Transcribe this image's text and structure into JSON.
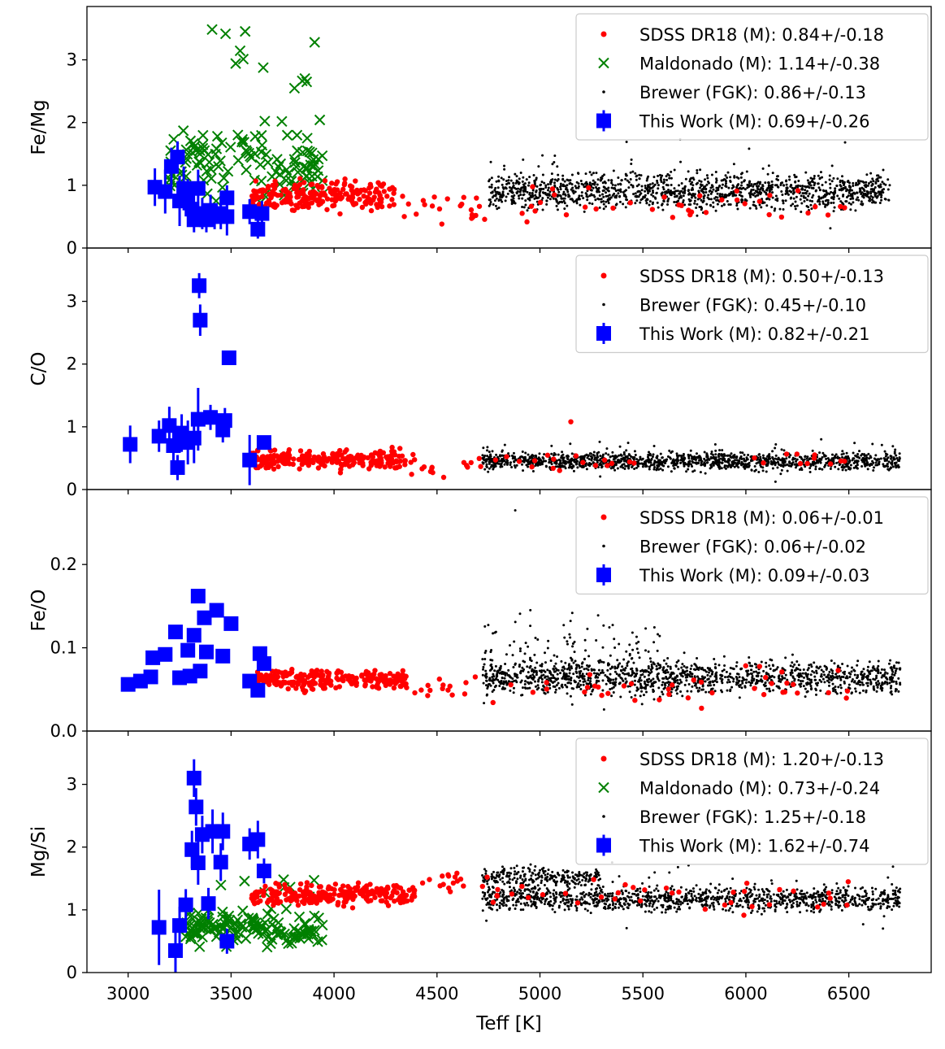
{
  "chart_data": {
    "type": "scatter",
    "xlabel": "Teff [K]",
    "xlim": [
      2800,
      6900
    ],
    "x_ticks": [
      3000,
      3500,
      4000,
      4500,
      5000,
      5500,
      6000,
      6500
    ],
    "colors": {
      "sdss": "#ff0000",
      "maldonado": "#008000",
      "brewer": "#000000",
      "this_work": "#0000ff"
    },
    "panels": [
      {
        "id": "fe-mg",
        "ylabel": "Fe/Mg",
        "ylim": [
          0,
          3.85
        ],
        "y_ticks": [
          0,
          1,
          2,
          3
        ],
        "legend": [
          {
            "key": "sdss",
            "label": "SDSS DR18 (M): 0.84+/-0.18"
          },
          {
            "key": "maldonado",
            "label": "Maldonado (M): 1.14+/-0.38"
          },
          {
            "key": "brewer",
            "label": "Brewer (FGK): 0.86+/-0.13"
          },
          {
            "key": "this_work",
            "label": "This Work (M): 0.69+/-0.26"
          }
        ],
        "dist": {
          "sdss": [
            {
              "x": [
                3600,
                4300
              ],
              "y": [
                0.5,
                1.2
              ],
              "n": 220
            },
            {
              "x": [
                4300,
                4700
              ],
              "y": [
                0.3,
                1.0
              ],
              "n": 20
            },
            {
              "x": [
                4700,
                6500
              ],
              "y": [
                0.3,
                1.1
              ],
              "n": 40
            }
          ],
          "maldonado": [
            {
              "x": [
                3200,
                3950
              ],
              "y": [
                0.5,
                2.2
              ],
              "n": 130
            },
            {
              "x": [
                3300,
                3950
              ],
              "y": [
                2.0,
                3.7
              ],
              "n": 12
            }
          ],
          "brewer": [
            {
              "x": [
                4750,
                6700
              ],
              "y": [
                0.5,
                1.3
              ],
              "n": 1300
            },
            {
              "x": [
                4750,
                6700
              ],
              "y": [
                0.2,
                1.9
              ],
              "n": 100
            }
          ]
        },
        "this_work": [
          {
            "x": 3130,
            "y": 0.97,
            "err": 0.3
          },
          {
            "x": 3180,
            "y": 0.9,
            "err": 0.35
          },
          {
            "x": 3210,
            "y": 1.3,
            "err": 0.3
          },
          {
            "x": 3240,
            "y": 1.45,
            "err": 0.25
          },
          {
            "x": 3250,
            "y": 0.75,
            "err": 0.4
          },
          {
            "x": 3270,
            "y": 0.95,
            "err": 0.35
          },
          {
            "x": 3290,
            "y": 0.8,
            "err": 0.3
          },
          {
            "x": 3310,
            "y": 0.62,
            "err": 0.25
          },
          {
            "x": 3320,
            "y": 0.45,
            "err": 0.2
          },
          {
            "x": 3340,
            "y": 0.95,
            "err": 0.3
          },
          {
            "x": 3360,
            "y": 0.55,
            "err": 0.25
          },
          {
            "x": 3380,
            "y": 0.45,
            "err": 0.2
          },
          {
            "x": 3400,
            "y": 0.6,
            "err": 0.25
          },
          {
            "x": 3420,
            "y": 0.5,
            "err": 0.2
          },
          {
            "x": 3450,
            "y": 0.55,
            "err": 0.25
          },
          {
            "x": 3480,
            "y": 0.8,
            "err": 0.2
          },
          {
            "x": 3590,
            "y": 0.58,
            "err": 0.2
          },
          {
            "x": 3630,
            "y": 0.3,
            "err": 0.15
          },
          {
            "x": 3650,
            "y": 0.55,
            "err": 0.2
          },
          {
            "x": 3480,
            "y": 0.5,
            "err": 0.3
          }
        ]
      },
      {
        "id": "c-o",
        "ylabel": "C/O",
        "ylim": [
          0,
          3.85
        ],
        "y_ticks": [
          0,
          1,
          2,
          3
        ],
        "legend": [
          {
            "key": "sdss",
            "label": "SDSS DR18 (M): 0.50+/-0.13"
          },
          {
            "key": "brewer",
            "label": "Brewer (FGK): 0.45+/-0.10"
          },
          {
            "key": "this_work",
            "label": "This Work (M): 0.82+/-0.21"
          }
        ],
        "dist": {
          "sdss": [
            {
              "x": [
                3600,
                4350
              ],
              "y": [
                0.25,
                0.7
              ],
              "n": 240
            },
            {
              "x": [
                4350,
                4700
              ],
              "y": [
                0.1,
                0.6
              ],
              "n": 15
            },
            {
              "x": [
                4700,
                6500
              ],
              "y": [
                0.25,
                0.6
              ],
              "n": 30
            }
          ],
          "brewer": [
            {
              "x": [
                4720,
                6750
              ],
              "y": [
                0.25,
                0.65
              ],
              "n": 1300
            },
            {
              "x": [
                4720,
                6750
              ],
              "y": [
                0.1,
                0.9
              ],
              "n": 100
            }
          ]
        },
        "points_extra": [
          {
            "key": "sdss",
            "x": 5150,
            "y": 1.08
          }
        ],
        "this_work": [
          {
            "x": 3010,
            "y": 0.72,
            "err": 0.3
          },
          {
            "x": 3150,
            "y": 0.85,
            "err": 0.25
          },
          {
            "x": 3200,
            "y": 1.02,
            "err": 0.3
          },
          {
            "x": 3220,
            "y": 0.7,
            "err": 0.35
          },
          {
            "x": 3240,
            "y": 0.35,
            "err": 0.2
          },
          {
            "x": 3260,
            "y": 0.9,
            "err": 0.3
          },
          {
            "x": 3290,
            "y": 0.75,
            "err": 0.35
          },
          {
            "x": 3320,
            "y": 0.82,
            "err": 0.4
          },
          {
            "x": 3340,
            "y": 1.12,
            "err": 0.5
          },
          {
            "x": 3345,
            "y": 3.25,
            "err": 0.2
          },
          {
            "x": 3350,
            "y": 2.7,
            "err": 0.25
          },
          {
            "x": 3400,
            "y": 1.15,
            "err": 0.2
          },
          {
            "x": 3460,
            "y": 0.95,
            "err": 0.2
          },
          {
            "x": 3470,
            "y": 1.1,
            "err": 0.2
          },
          {
            "x": 3490,
            "y": 2.1,
            "err": 0.1
          },
          {
            "x": 3590,
            "y": 0.47,
            "err": 0.4
          },
          {
            "x": 3660,
            "y": 0.75,
            "err": 0.1
          }
        ]
      },
      {
        "id": "fe-o",
        "ylabel": "Fe/O",
        "ylim": [
          0,
          0.29
        ],
        "y_ticks": [
          0.0,
          0.1,
          0.2
        ],
        "y_tick_labels": [
          "0.0",
          "0.1",
          "0.2"
        ],
        "legend": [
          {
            "key": "sdss",
            "label": "SDSS DR18 (M): 0.06+/-0.01"
          },
          {
            "key": "brewer",
            "label": "Brewer (FGK): 0.06+/-0.02"
          },
          {
            "key": "this_work",
            "label": "This Work (M): 0.09+/-0.03"
          }
        ],
        "dist": {
          "sdss": [
            {
              "x": [
                3600,
                4350
              ],
              "y": [
                0.045,
                0.08
              ],
              "n": 240
            },
            {
              "x": [
                4350,
                4700
              ],
              "y": [
                0.03,
                0.07
              ],
              "n": 15
            },
            {
              "x": [
                4700,
                6500
              ],
              "y": [
                0.02,
                0.085
              ],
              "n": 40
            }
          ],
          "brewer": [
            {
              "x": [
                4720,
                6750
              ],
              "y": [
                0.035,
                0.095
              ],
              "n": 1300
            },
            {
              "x": [
                4720,
                5600
              ],
              "y": [
                0.01,
                0.16
              ],
              "n": 150
            }
          ]
        },
        "points_extra": [
          {
            "key": "brewer",
            "x": 4880,
            "y": 0.265
          }
        ],
        "this_work": [
          {
            "x": 3000,
            "y": 0.056,
            "err": 0.003
          },
          {
            "x": 3060,
            "y": 0.06,
            "err": 0.003
          },
          {
            "x": 3110,
            "y": 0.065,
            "err": 0.003
          },
          {
            "x": 3120,
            "y": 0.088,
            "err": 0.003
          },
          {
            "x": 3180,
            "y": 0.092,
            "err": 0.003
          },
          {
            "x": 3230,
            "y": 0.119,
            "err": 0.003
          },
          {
            "x": 3250,
            "y": 0.064,
            "err": 0.003
          },
          {
            "x": 3290,
            "y": 0.097,
            "err": 0.003
          },
          {
            "x": 3300,
            "y": 0.066,
            "err": 0.003
          },
          {
            "x": 3320,
            "y": 0.115,
            "err": 0.003
          },
          {
            "x": 3340,
            "y": 0.162,
            "err": 0.003
          },
          {
            "x": 3350,
            "y": 0.072,
            "err": 0.003
          },
          {
            "x": 3370,
            "y": 0.136,
            "err": 0.003
          },
          {
            "x": 3380,
            "y": 0.095,
            "err": 0.003
          },
          {
            "x": 3430,
            "y": 0.145,
            "err": 0.003
          },
          {
            "x": 3460,
            "y": 0.09,
            "err": 0.003
          },
          {
            "x": 3500,
            "y": 0.129,
            "err": 0.003
          },
          {
            "x": 3590,
            "y": 0.06,
            "err": 0.003
          },
          {
            "x": 3630,
            "y": 0.049,
            "err": 0.003
          },
          {
            "x": 3640,
            "y": 0.093,
            "err": 0.003
          },
          {
            "x": 3660,
            "y": 0.081,
            "err": 0.003
          }
        ]
      },
      {
        "id": "mg-si",
        "ylabel": "Mg/Si",
        "ylim": [
          0,
          3.85
        ],
        "y_ticks": [
          0,
          1,
          2,
          3
        ],
        "legend": [
          {
            "key": "sdss",
            "label": "SDSS DR18 (M): 1.20+/-0.13"
          },
          {
            "key": "maldonado",
            "label": "Maldonado (M): 0.73+/-0.24"
          },
          {
            "key": "brewer",
            "label": "Brewer (FGK): 1.25+/-0.18"
          },
          {
            "key": "this_work",
            "label": "This Work (M): 1.62+/-0.74"
          }
        ],
        "dist": {
          "sdss": [
            {
              "x": [
                3600,
                4400
              ],
              "y": [
                1.0,
                1.5
              ],
              "n": 240
            },
            {
              "x": [
                4400,
                4700
              ],
              "y": [
                1.1,
                1.8
              ],
              "n": 15
            },
            {
              "x": [
                4700,
                6500
              ],
              "y": [
                0.8,
                1.6
              ],
              "n": 40
            }
          ],
          "maldonado": [
            {
              "x": [
                3280,
                3950
              ],
              "y": [
                0.3,
                1.1
              ],
              "n": 140
            },
            {
              "x": [
                3400,
                3950
              ],
              "y": [
                1.1,
                1.6
              ],
              "n": 8
            }
          ],
          "brewer": [
            {
              "x": [
                4720,
                5300
              ],
              "y": [
                1.3,
                1.75
              ],
              "n": 250
            },
            {
              "x": [
                4720,
                6750
              ],
              "y": [
                0.9,
                1.45
              ],
              "n": 1100
            },
            {
              "x": [
                4720,
                6750
              ],
              "y": [
                0.5,
                2.1
              ],
              "n": 80
            }
          ]
        },
        "this_work": [
          {
            "x": 3150,
            "y": 0.72,
            "err": 0.6
          },
          {
            "x": 3230,
            "y": 0.35,
            "err": 0.35
          },
          {
            "x": 3250,
            "y": 0.75,
            "err": 0.3
          },
          {
            "x": 3280,
            "y": 1.08,
            "err": 0.25
          },
          {
            "x": 3310,
            "y": 1.96,
            "err": 0.3
          },
          {
            "x": 3320,
            "y": 3.1,
            "err": 0.3
          },
          {
            "x": 3330,
            "y": 2.64,
            "err": 0.3
          },
          {
            "x": 3340,
            "y": 1.75,
            "err": 0.35
          },
          {
            "x": 3360,
            "y": 2.2,
            "err": 0.3
          },
          {
            "x": 3390,
            "y": 1.1,
            "err": 0.25
          },
          {
            "x": 3410,
            "y": 2.25,
            "err": 0.35
          },
          {
            "x": 3450,
            "y": 1.76,
            "err": 0.3
          },
          {
            "x": 3460,
            "y": 2.25,
            "err": 0.3
          },
          {
            "x": 3480,
            "y": 0.5,
            "err": 0.2
          },
          {
            "x": 3590,
            "y": 2.05,
            "err": 0.25
          },
          {
            "x": 3630,
            "y": 2.12,
            "err": 0.3
          },
          {
            "x": 3660,
            "y": 1.62,
            "err": 0.2
          }
        ]
      }
    ]
  }
}
